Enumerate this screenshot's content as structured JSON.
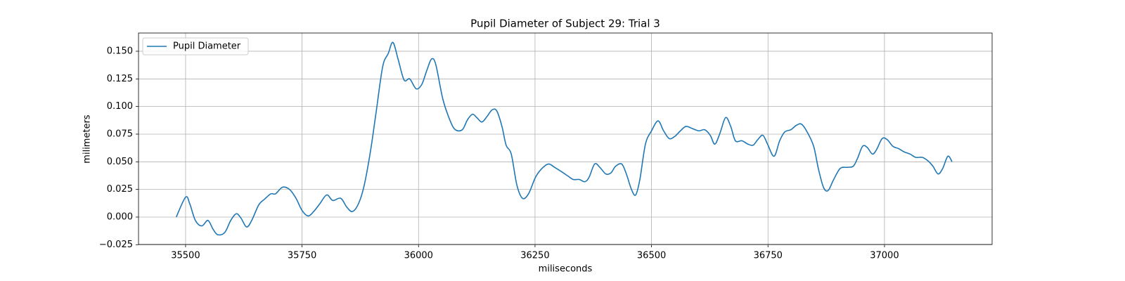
{
  "chart_data": {
    "type": "line",
    "title": "Pupil Diameter of Subject 29: Trial 3",
    "x_label": "miliseconds",
    "y_label": "milimeters",
    "x": [
      35480,
      35500,
      35509,
      35521,
      35535,
      35548,
      35559,
      35569,
      35584,
      35597,
      35609,
      35619,
      35631,
      35642,
      35657,
      35669,
      35683,
      35693,
      35708,
      35723,
      35737,
      35750,
      35763,
      35775,
      35788,
      35803,
      35816,
      35833,
      35846,
      35858,
      35871,
      35883,
      35897,
      35909,
      35923,
      35935,
      35945,
      35956,
      35969,
      35981,
      35995,
      36007,
      36018,
      36028,
      36037,
      36052,
      36067,
      36079,
      36094,
      36105,
      36116,
      36125,
      36136,
      36147,
      36158,
      36168,
      36179,
      36188,
      36199,
      36211,
      36223,
      36236,
      36251,
      36265,
      36279,
      36292,
      36307,
      36321,
      36332,
      36345,
      36357,
      36366,
      36378,
      36389,
      36402,
      36413,
      36423,
      36436,
      36446,
      36457,
      36466,
      36475,
      36487,
      36500,
      36514,
      36526,
      36538,
      36550,
      36562,
      36574,
      36588,
      36602,
      36614,
      36626,
      36636,
      36647,
      36659,
      36670,
      36680,
      36694,
      36707,
      36718,
      36728,
      36739,
      36749,
      36763,
      36775,
      36786,
      36799,
      36811,
      36822,
      36834,
      36848,
      36858,
      36869,
      36879,
      36891,
      36905,
      36920,
      36933,
      36942,
      36953,
      36963,
      36974,
      36983,
      36995,
      37006,
      37018,
      37030,
      37042,
      37055,
      37067,
      37081,
      37093,
      37104,
      37115,
      37125,
      37136,
      37145
    ],
    "series": [
      {
        "name": "Pupil Diameter",
        "color": "#1f77b4",
        "values": [
          0.0,
          0.018,
          0.012,
          -0.003,
          -0.008,
          -0.003,
          -0.011,
          -0.016,
          -0.014,
          -0.003,
          0.003,
          -0.001,
          -0.009,
          -0.003,
          0.011,
          0.016,
          0.021,
          0.021,
          0.027,
          0.025,
          0.017,
          0.006,
          0.001,
          0.005,
          0.012,
          0.02,
          0.015,
          0.017,
          0.009,
          0.005,
          0.012,
          0.028,
          0.06,
          0.095,
          0.136,
          0.148,
          0.158,
          0.143,
          0.124,
          0.125,
          0.116,
          0.12,
          0.133,
          0.143,
          0.138,
          0.107,
          0.088,
          0.079,
          0.079,
          0.088,
          0.093,
          0.09,
          0.086,
          0.091,
          0.097,
          0.096,
          0.082,
          0.065,
          0.057,
          0.029,
          0.017,
          0.021,
          0.036,
          0.044,
          0.048,
          0.045,
          0.041,
          0.037,
          0.034,
          0.034,
          0.032,
          0.036,
          0.048,
          0.045,
          0.039,
          0.04,
          0.046,
          0.048,
          0.039,
          0.025,
          0.02,
          0.034,
          0.066,
          0.078,
          0.087,
          0.078,
          0.071,
          0.073,
          0.078,
          0.082,
          0.08,
          0.078,
          0.079,
          0.074,
          0.066,
          0.076,
          0.09,
          0.082,
          0.069,
          0.069,
          0.066,
          0.065,
          0.07,
          0.074,
          0.066,
          0.055,
          0.069,
          0.077,
          0.079,
          0.083,
          0.084,
          0.077,
          0.064,
          0.044,
          0.027,
          0.024,
          0.034,
          0.044,
          0.045,
          0.046,
          0.053,
          0.064,
          0.063,
          0.057,
          0.061,
          0.071,
          0.07,
          0.064,
          0.062,
          0.059,
          0.057,
          0.054,
          0.054,
          0.051,
          0.046,
          0.039,
          0.044,
          0.055,
          0.05
        ]
      }
    ],
    "xlim": [
      35399,
      37231
    ],
    "ylim": [
      -0.0248,
      0.1665
    ],
    "xticks": [
      35500,
      35750,
      36000,
      36250,
      36500,
      36750,
      37000
    ],
    "yticks": [
      {
        "value": -0.025,
        "label": "−0.025"
      },
      {
        "value": 0,
        "label": "0.000"
      },
      {
        "value": 0.025,
        "label": "0.025"
      },
      {
        "value": 0.05,
        "label": "0.050"
      },
      {
        "value": 0.075,
        "label": "0.075"
      },
      {
        "value": 0.1,
        "label": "0.100"
      },
      {
        "value": 0.125,
        "label": "0.125"
      },
      {
        "value": 0.15,
        "label": "0.150"
      }
    ],
    "grid": true,
    "legend": "upper-left"
  }
}
